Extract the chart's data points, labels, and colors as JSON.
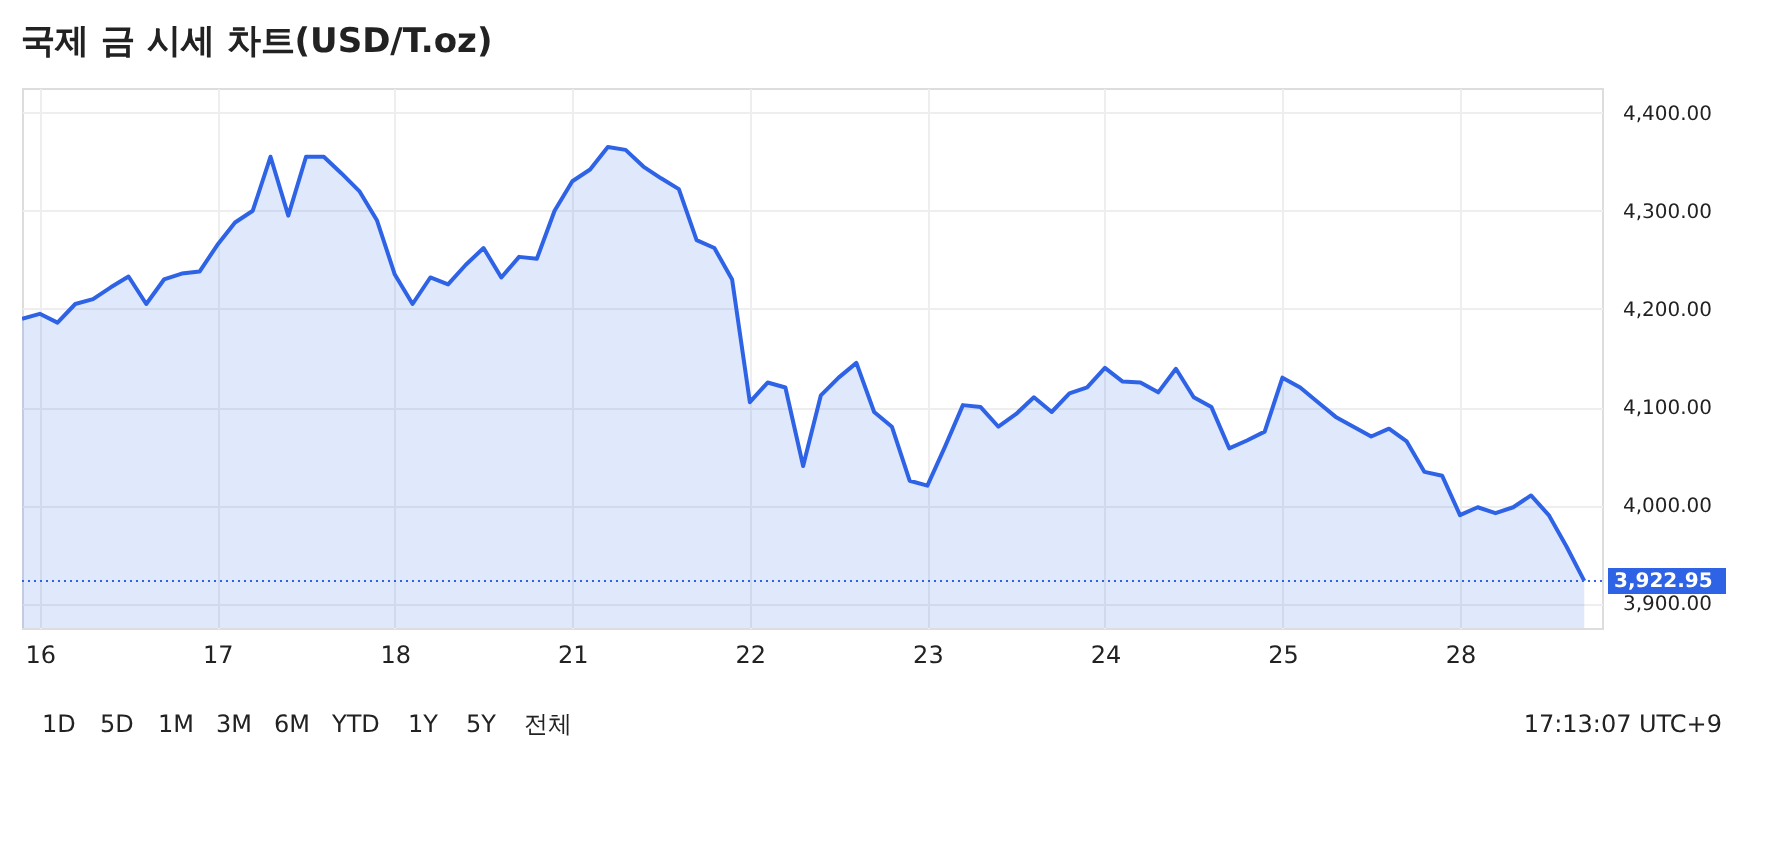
{
  "chart_data": {
    "type": "area",
    "title": "국제 금 시세 차트(USD/T.oz)",
    "categories": [
      null,
      "16",
      null,
      null,
      null,
      null,
      null,
      null,
      null,
      null,
      null,
      "17",
      null,
      null,
      null,
      null,
      null,
      null,
      null,
      null,
      null,
      "18",
      null,
      null,
      null,
      null,
      null,
      null,
      null,
      null,
      null,
      "21",
      null,
      null,
      null,
      null,
      null,
      null,
      null,
      null,
      null,
      "22",
      null,
      null,
      null,
      null,
      null,
      null,
      null,
      null,
      null,
      "23",
      null,
      null,
      null,
      null,
      null,
      null,
      null,
      null,
      null,
      "24",
      null,
      null,
      null,
      null,
      null,
      null,
      null,
      null,
      null,
      "25",
      null,
      null,
      null,
      null,
      null,
      null,
      null,
      null,
      null,
      "28",
      null,
      null,
      null,
      null,
      null,
      null,
      null
    ],
    "series": [
      {
        "color": "#2f63e6",
        "values": [
          4190,
          4195,
          4186,
          4205,
          4210,
          4222,
          4233,
          4205,
          4230,
          4236,
          4238,
          4265,
          4288,
          4300,
          4355,
          4295,
          4355,
          4355,
          4338,
          4320,
          4290,
          4235,
          4205,
          4232,
          4225,
          4245,
          4262,
          4232,
          4253,
          4251,
          4300,
          4330,
          4342,
          4365,
          4362,
          4345,
          4333,
          4322,
          4270,
          4262,
          4230,
          4105,
          4125,
          4120,
          4040,
          4112,
          4130,
          4145,
          4095,
          4080,
          4025,
          4020,
          4060,
          4102,
          4100,
          4080,
          4093,
          4110,
          4095,
          4114,
          4120,
          4140,
          4126,
          4125,
          4115,
          4139,
          4110,
          4100,
          4058,
          4066,
          4075,
          4130,
          4120,
          4105,
          4090,
          4080,
          4070,
          4078,
          4065,
          4034,
          4030,
          3990,
          3998,
          3992,
          3998,
          4010,
          3990,
          3958,
          3923
        ]
      }
    ],
    "ylim": [
      3875,
      4425
    ],
    "yticks": [
      {
        "value": 3900,
        "label": "3,900.00"
      },
      {
        "value": 4000,
        "label": "4,000.00"
      },
      {
        "value": 4100,
        "label": "4,100.00"
      },
      {
        "value": 4200,
        "label": "4,200.00"
      },
      {
        "value": 4300,
        "label": "4,300.00"
      },
      {
        "value": 4400,
        "label": "4,400.00"
      }
    ],
    "ref_lines": [
      {
        "axis": "y",
        "value": 3922.95,
        "label": "3,922.95",
        "color": "#2f63e6",
        "line_style": "dotted"
      }
    ],
    "grid": true,
    "annotations": [
      "1D",
      "5D",
      "1M",
      "3M",
      "6M",
      "YTD",
      "1Y",
      "5Y",
      "전체",
      "17:13:07 UTC+9"
    ]
  }
}
